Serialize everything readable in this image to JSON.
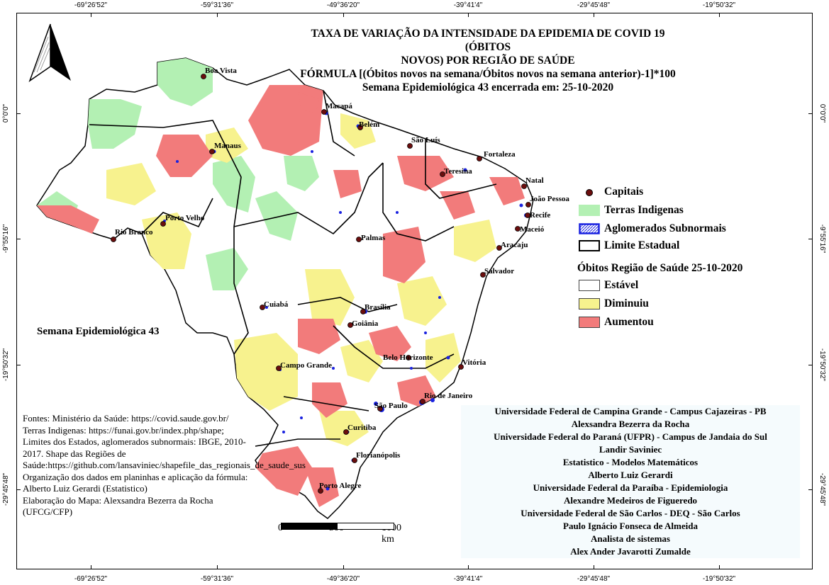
{
  "map": {
    "title_lines": [
      "TAXA DE VARIAÇÃO DA INTENSIDADE DA EPIDEMIA DE COVID 19 (ÓBITOS",
      "NOVOS) POR REGIÃO DE SAÚDE",
      "FÓRMULA [(Óbitos novos na semana/Óbitos novos na semana anterior)-1]*100",
      "Semana Epidemiológica 43 encerrada em: 25-10-2020"
    ],
    "week_label": "Semana Epidemiológica 43",
    "coordinates": {
      "longitudes": [
        "-69°26'52\"",
        "-59°31'36\"",
        "-49°36'20\"",
        "-39°41'4\"",
        "-29°45'48\"",
        "-19°50'32\""
      ],
      "latitudes": [
        "0°0'0\"",
        "-9°55'16\"",
        "-19°50'32\"",
        "-29°45'48\""
      ]
    },
    "legend": {
      "capitals": "Capitais",
      "indigenous": "Terras Indigenas",
      "subnormal": "Aglomerados Subnormais",
      "state_limit": "Limite Estadual",
      "category_title": "Óbitos Região de Saúde 25-10-2020",
      "categories": [
        {
          "label": "Estável",
          "color": "#ffffff"
        },
        {
          "label": "Diminuiu",
          "color": "#f7f28e"
        },
        {
          "label": "Aumentou",
          "color": "#f27b7b"
        }
      ],
      "indigenous_color": "#b3f0b3",
      "subnormal_color": "#1a22e0"
    },
    "scale_bar": {
      "labels": [
        "0",
        "500",
        "1000 km"
      ]
    },
    "capitals": [
      "Boa Vista",
      "Macapá",
      "Belém",
      "São Luís",
      "Manaus",
      "Fortaleza",
      "Teresina",
      "Natal",
      "João Pessoa",
      "Recife",
      "Porto Velho",
      "Maceió",
      "Rio Branco",
      "Palmas",
      "Aracaju",
      "Salvador",
      "Cuiabá",
      "Brasília",
      "Goiânia",
      "Campo Grande",
      "Belo Horizonte",
      "Vitória",
      "Rio de Janeiro",
      "São Paulo",
      "Curitiba",
      "Florianópolis",
      "Porto Alegre"
    ],
    "sources": [
      "Fontes: Ministério da Saúde: https://covid.saude.gov.br/",
      "Terras Indigenas: https://funai.gov.br/index.php/shape; Limites dos Estados, aglomerados subnormais: IBGE, 2010-2017. Shape das Regiões de Saúde:https://github.com/lansaviniec/shapefile_das_regionais_de_saude_sus",
      "Organização dos dados em planinhas e aplicação da fórmula: Alberto Luiz Gerardi (Estatistico)",
      "Elaboração do Mapa: Alexsandra Bezerra da Rocha (UFCG/CFP)"
    ],
    "credits": [
      "Universidade Federal de Campina Grande - Campus Cajazeiras - PB",
      "Alexsandra Bezerra da Rocha",
      "Universidade Federal do Paraná (UFPR) - Campus de Jandaia do Sul",
      "Landir Saviniec",
      "Estatistico - Modelos Matemáticos",
      "Alberto Luiz Gerardi",
      "Universidade Federal da Paraíba - Epidemiologia",
      "Alexandre Medeiros de Figueredo",
      "Universidade Federal de São Carlos - DEQ - São Carlos",
      "Paulo Ignácio Fonseca de Almeida",
      "Analista de sistemas",
      "Alex Ander Javarotti Zumalde"
    ]
  }
}
